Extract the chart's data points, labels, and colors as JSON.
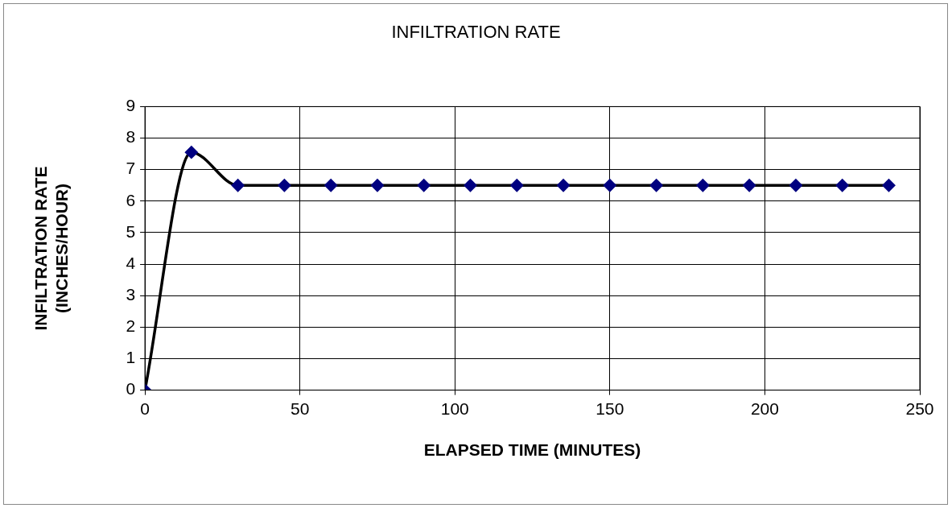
{
  "chart_data": {
    "type": "line",
    "title": "INFILTRATION RATE",
    "xlabel": "ELAPSED TIME (MINUTES)",
    "ylabel": "INFILTRATION RATE\n(INCHES/HOUR)",
    "x": [
      0,
      15,
      30,
      45,
      60,
      75,
      90,
      105,
      120,
      135,
      150,
      165,
      180,
      195,
      210,
      225,
      240
    ],
    "series": [
      {
        "color": "#000000",
        "colors": [
          "#000080",
          "#000080",
          "#000080",
          "#000080",
          "#000080",
          "#000080",
          "#000080",
          "#000080",
          "#000080",
          "#000080",
          "#000080",
          "#000080",
          "#000080",
          "#000080",
          "#000080",
          "#000080",
          "#000080"
        ],
        "values": [
          0,
          7.55,
          6.5,
          6.5,
          6.5,
          6.5,
          6.5,
          6.5,
          6.5,
          6.5,
          6.5,
          6.5,
          6.5,
          6.5,
          6.5,
          6.5,
          6.5
        ]
      }
    ],
    "xlim": [
      0,
      250
    ],
    "xticks": [
      0,
      50,
      100,
      150,
      200,
      250
    ],
    "ylim": [
      0,
      9
    ],
    "yticks": [
      0,
      1,
      2,
      3,
      4,
      5,
      6,
      7,
      8,
      9
    ],
    "grid": true,
    "legend": false,
    "marker": "diamond",
    "line_style": "solid"
  }
}
